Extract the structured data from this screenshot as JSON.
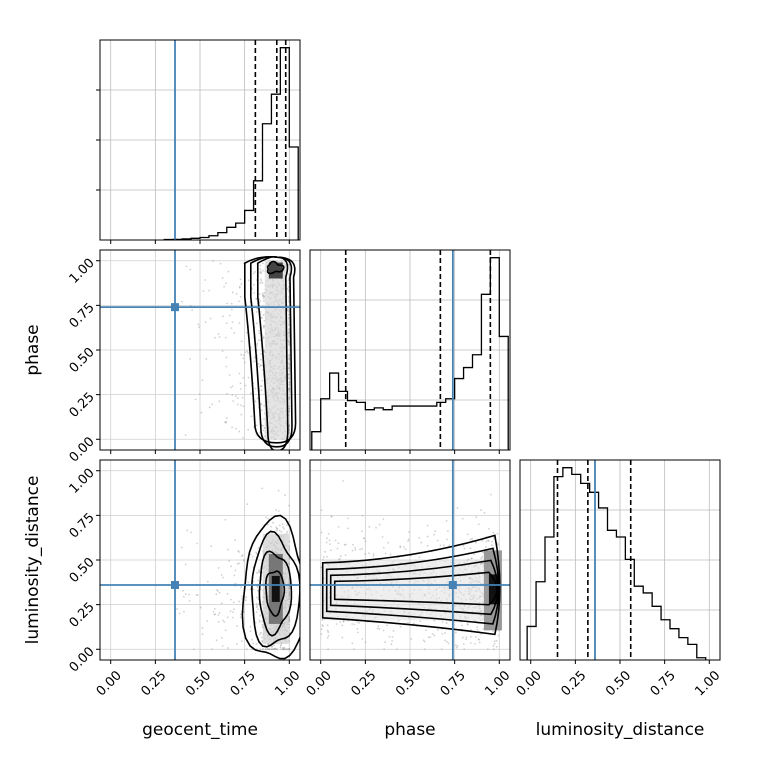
{
  "chart_data": {
    "type": "corner",
    "parameters": [
      "geocent_time",
      "phase",
      "luminosity_distance"
    ],
    "axis_ticks": [
      "0.00",
      "0.25",
      "0.50",
      "0.75",
      "1.00"
    ],
    "axis_range": [
      -0.06,
      1.06
    ],
    "truths": {
      "geocent_time": 0.36,
      "phase": 0.74,
      "luminosity_distance": 0.36
    },
    "truth_color": "#4682b4",
    "quantile_lines": {
      "geocent_time": [
        0.81,
        0.93,
        0.98
      ],
      "phase": [
        0.14,
        0.67,
        0.95
      ],
      "luminosity_distance": [
        0.15,
        0.32,
        0.56
      ]
    },
    "histograms": {
      "geocent_time": {
        "bin_edges": [
          0.3,
          0.35,
          0.4,
          0.45,
          0.5,
          0.55,
          0.6,
          0.65,
          0.7,
          0.75,
          0.8,
          0.85,
          0.9,
          0.95,
          1.0,
          1.05
        ],
        "counts": [
          0.002,
          0.003,
          0.005,
          0.008,
          0.012,
          0.02,
          0.035,
          0.06,
          0.08,
          0.14,
          0.28,
          0.55,
          0.69,
          0.91,
          0.44
        ]
      },
      "phase": {
        "bin_edges": [
          -0.05,
          0.0,
          0.05,
          0.1,
          0.15,
          0.2,
          0.25,
          0.3,
          0.35,
          0.4,
          0.45,
          0.5,
          0.55,
          0.6,
          0.65,
          0.7,
          0.75,
          0.8,
          0.85,
          0.9,
          0.95,
          1.0,
          1.05
        ],
        "counts": [
          0.1,
          0.28,
          0.42,
          0.32,
          0.27,
          0.26,
          0.22,
          0.23,
          0.22,
          0.24,
          0.24,
          0.24,
          0.24,
          0.24,
          0.26,
          0.28,
          0.39,
          0.45,
          0.52,
          0.85,
          1.05,
          0.62
        ]
      },
      "luminosity_distance": {
        "bin_edges": [
          -0.02,
          0.03,
          0.08,
          0.13,
          0.18,
          0.23,
          0.28,
          0.33,
          0.38,
          0.43,
          0.48,
          0.53,
          0.58,
          0.63,
          0.68,
          0.73,
          0.78,
          0.83,
          0.88,
          0.93,
          0.98
        ],
        "counts": [
          0.15,
          0.35,
          0.55,
          0.82,
          0.86,
          0.83,
          0.79,
          0.75,
          0.68,
          0.58,
          0.55,
          0.45,
          0.33,
          0.3,
          0.24,
          0.18,
          0.14,
          0.1,
          0.07,
          0.01
        ]
      }
    },
    "scatter_2d": {
      "phase_vs_geocent_time": {
        "x_center": 0.93,
        "x_spread": 0.06,
        "x_tail_min": 0.3,
        "y_range": [
          0.0,
          1.0
        ],
        "density_peak_y": 0.96
      },
      "luminosity_distance_vs_geocent_time": {
        "x_center": 0.93,
        "x_spread": 0.05,
        "x_tail_min": 0.3,
        "y_center": 0.3,
        "y_spread": 0.18
      },
      "luminosity_distance_vs_phase": {
        "x_range": [
          0.0,
          1.0
        ],
        "y_center": 0.33,
        "y_spread": 0.17,
        "density_peak_x": 0.97
      }
    },
    "contour_levels": 4,
    "grid": true,
    "legend": "none"
  }
}
